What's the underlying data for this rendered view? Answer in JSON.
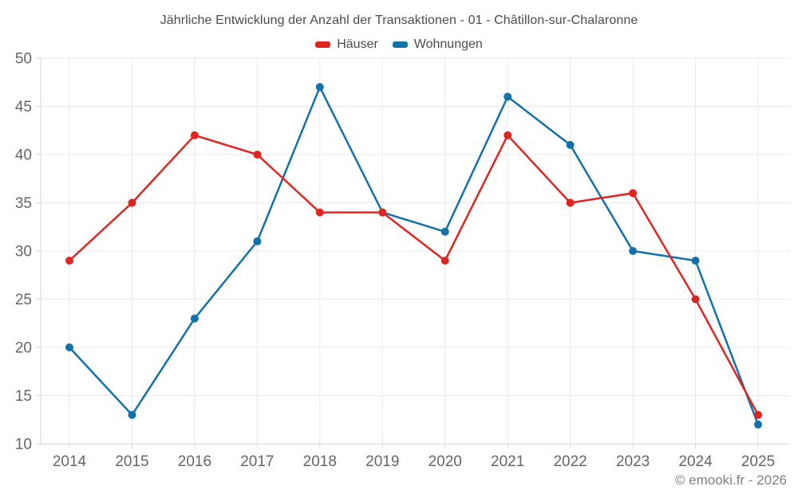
{
  "title": "Jährliche Entwicklung der Anzahl der Transaktionen - 01 - Châtillon-sur-Chalaronne",
  "legend": [
    {
      "label": "Häuser",
      "color": "#e02521"
    },
    {
      "label": "Wohnungen",
      "color": "#1371a9"
    }
  ],
  "footer": "© emooki.fr - 2026",
  "colors": {
    "haeuser": "#e02521",
    "wohnungen": "#1371a9",
    "grid": "#e9e9e9",
    "axis": "#d6d6d6",
    "tick_label": "#666666",
    "title_text": "#4b4b4b",
    "footer_text": "#7f7f7f"
  },
  "chart_data": {
    "type": "line",
    "title": "Jährliche Entwicklung der Anzahl der Transaktionen - 01 - Châtillon-sur-Chalaronne",
    "categories": [
      "2014",
      "2015",
      "2016",
      "2017",
      "2018",
      "2019",
      "2020",
      "2021",
      "2022",
      "2023",
      "2024",
      "2025"
    ],
    "series": [
      {
        "name": "Häuser",
        "color": "#e02521",
        "values": [
          29,
          35,
          42,
          40,
          34,
          34,
          29,
          42,
          35,
          36,
          25,
          13
        ]
      },
      {
        "name": "Wohnungen",
        "color": "#1371a9",
        "values": [
          20,
          13,
          23,
          31,
          47,
          34,
          32,
          46,
          41,
          30,
          29,
          12
        ]
      }
    ],
    "xlabel": "",
    "ylabel": "",
    "ylim": [
      10,
      50
    ],
    "ytick_step": 5,
    "yticks": [
      10,
      15,
      20,
      25,
      30,
      35,
      40,
      45,
      50
    ],
    "grid": true,
    "legend_position": "top",
    "marker": "circle"
  }
}
